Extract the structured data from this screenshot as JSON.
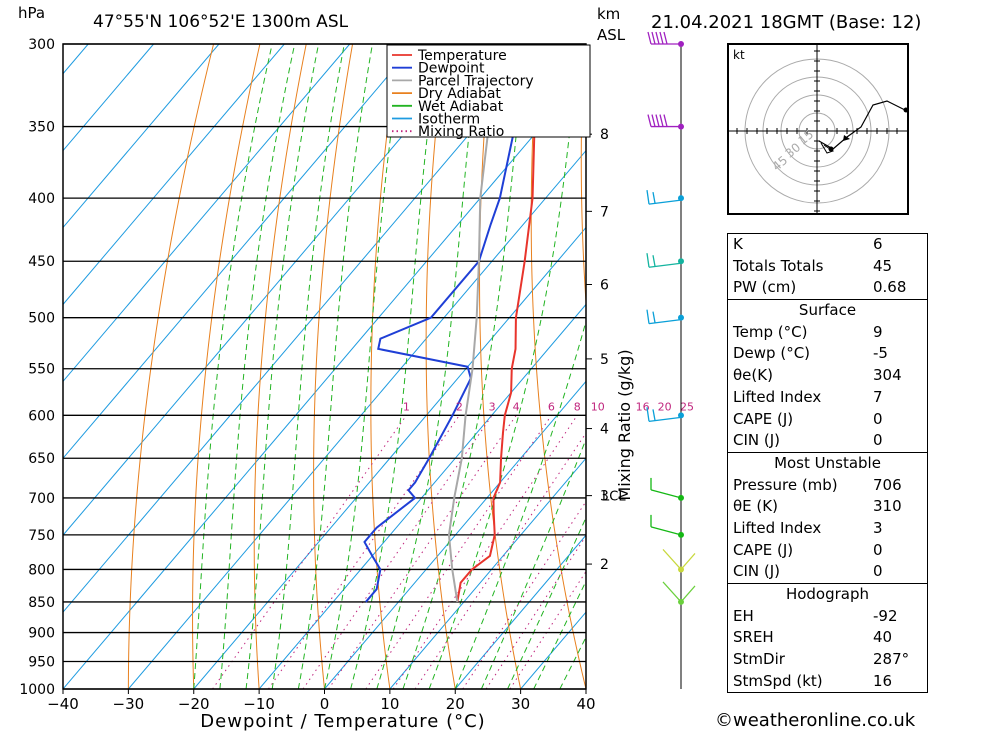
{
  "header": {
    "hpa_label": "hPa",
    "location": "47°55'N  106°52'E  1300m  ASL",
    "km_label": "km",
    "asl_label": "ASL",
    "datetime": "21.04.2021  18GMT  (Base: 12)"
  },
  "footer": {
    "copyright": "©weatheronline.co.uk"
  },
  "legend": [
    {
      "label": "Temperature",
      "color": "#e8342c",
      "style": "solid"
    },
    {
      "label": "Dewpoint",
      "color": "#1f3fd6",
      "style": "solid"
    },
    {
      "label": "Parcel Trajectory",
      "color": "#a8a8a8",
      "style": "solid"
    },
    {
      "label": "Dry Adiabat",
      "color": "#e8801e",
      "style": "solid"
    },
    {
      "label": "Wet Adiabat",
      "color": "#22b422",
      "style": "solid"
    },
    {
      "label": "Isotherm",
      "color": "#1e9be0",
      "style": "solid"
    },
    {
      "label": "Mixing Ratio",
      "color": "#c0267e",
      "style": "dotted"
    }
  ],
  "hodograph": {
    "unit_label": "kt",
    "ring_labels": [
      "15",
      "30",
      "45"
    ]
  },
  "indices": [
    {
      "k": "K",
      "v": "6"
    },
    {
      "k": "Totals Totals",
      "v": "45"
    },
    {
      "k": "PW (cm)",
      "v": "0.68"
    }
  ],
  "surface": {
    "title": "Surface",
    "rows": [
      {
        "k": "Temp (°C)",
        "v": "9"
      },
      {
        "k": "Dewp (°C)",
        "v": "-5"
      },
      {
        "k": "θe(K)",
        "v": "304"
      },
      {
        "k": "Lifted Index",
        "v": "7"
      },
      {
        "k": "CAPE (J)",
        "v": "0"
      },
      {
        "k": "CIN (J)",
        "v": "0"
      }
    ]
  },
  "most_unstable": {
    "title": "Most Unstable",
    "rows": [
      {
        "k": "Pressure (mb)",
        "v": "706"
      },
      {
        "k": "θE (K)",
        "v": "310"
      },
      {
        "k": "Lifted Index",
        "v": "3"
      },
      {
        "k": "CAPE (J)",
        "v": "0"
      },
      {
        "k": "CIN (J)",
        "v": "0"
      }
    ]
  },
  "hodograph_table": {
    "title": "Hodograph",
    "rows": [
      {
        "k": "EH",
        "v": "-92"
      },
      {
        "k": "SREH",
        "v": "40"
      },
      {
        "k": "StmDir",
        "v": "287°"
      },
      {
        "k": "StmSpd (kt)",
        "v": "16"
      }
    ]
  },
  "chart_data": {
    "type": "line",
    "xlabel": "Dewpoint / Temperature (°C)",
    "ylabel": "Mixing Ratio (g/kg)",
    "x_ticks": [
      -40,
      -30,
      -20,
      -10,
      0,
      10,
      20,
      30,
      40
    ],
    "pressure_levels": [
      300,
      350,
      400,
      450,
      500,
      550,
      600,
      650,
      700,
      750,
      800,
      850,
      900,
      950,
      1000
    ],
    "km_ticks": [
      {
        "km": "8",
        "p": 355
      },
      {
        "km": "7",
        "p": 410
      },
      {
        "km": "6",
        "p": 470
      },
      {
        "km": "5",
        "p": 540
      },
      {
        "km": "4",
        "p": 615
      },
      {
        "km": "3",
        "p": 697
      },
      {
        "km": "2",
        "p": 792
      }
    ],
    "lcl_label": "LCL",
    "lcl_pressure": 697,
    "mixing_ratio_labels": [
      "1",
      "2",
      "3",
      "4",
      "6",
      "8",
      "10",
      "16",
      "20",
      "25"
    ],
    "mixing_ratio_values": [
      1,
      2,
      3,
      4,
      6,
      8,
      10,
      16,
      20,
      25
    ],
    "series": [
      {
        "name": "Temperature",
        "points": [
          [
            850,
            9
          ],
          [
            820,
            7
          ],
          [
            800,
            7
          ],
          [
            780,
            8
          ],
          [
            750,
            6
          ],
          [
            720,
            3
          ],
          [
            700,
            1
          ],
          [
            680,
            0
          ],
          [
            650,
            -3
          ],
          [
            620,
            -6
          ],
          [
            600,
            -8
          ],
          [
            575,
            -10
          ],
          [
            550,
            -13
          ],
          [
            530,
            -15
          ],
          [
            500,
            -19
          ],
          [
            450,
            -25
          ],
          [
            400,
            -32
          ],
          [
            350,
            -41
          ],
          [
            320,
            -47
          ],
          [
            300,
            -51
          ]
        ]
      },
      {
        "name": "Dewpoint",
        "points": [
          [
            850,
            -5
          ],
          [
            830,
            -5
          ],
          [
            800,
            -7
          ],
          [
            780,
            -10
          ],
          [
            760,
            -13
          ],
          [
            740,
            -13
          ],
          [
            700,
            -11
          ],
          [
            690,
            -13
          ],
          [
            680,
            -13
          ],
          [
            650,
            -14
          ],
          [
            600,
            -16
          ],
          [
            560,
            -18
          ],
          [
            548,
            -20
          ],
          [
            530,
            -36
          ],
          [
            520,
            -37
          ],
          [
            500,
            -32
          ],
          [
            450,
            -32
          ],
          [
            420,
            -35
          ],
          [
            400,
            -37
          ],
          [
            350,
            -44
          ],
          [
            330,
            -47
          ],
          [
            300,
            -56
          ]
        ]
      },
      {
        "name": "Parcel Trajectory",
        "points": [
          [
            850,
            9
          ],
          [
            800,
            4
          ],
          [
            750,
            -1
          ],
          [
            700,
            -5
          ],
          [
            650,
            -9
          ],
          [
            600,
            -14
          ],
          [
            550,
            -19
          ],
          [
            500,
            -25
          ],
          [
            450,
            -32
          ],
          [
            400,
            -40
          ],
          [
            350,
            -48
          ],
          [
            300,
            -58
          ]
        ]
      }
    ],
    "wind_barbs": [
      {
        "p": 300,
        "color": "#a020c0"
      },
      {
        "p": 350,
        "color": "#a020c0"
      },
      {
        "p": 400,
        "color": "#0aa0d8"
      },
      {
        "p": 450,
        "color": "#14b4a0"
      },
      {
        "p": 500,
        "color": "#0aa0d8"
      },
      {
        "p": 600,
        "color": "#0aa0d8"
      },
      {
        "p": 700,
        "color": "#14b814"
      },
      {
        "p": 750,
        "color": "#14b814"
      },
      {
        "p": 800,
        "color": "#c8d83c"
      },
      {
        "p": 850,
        "color": "#6ad03c"
      }
    ]
  }
}
